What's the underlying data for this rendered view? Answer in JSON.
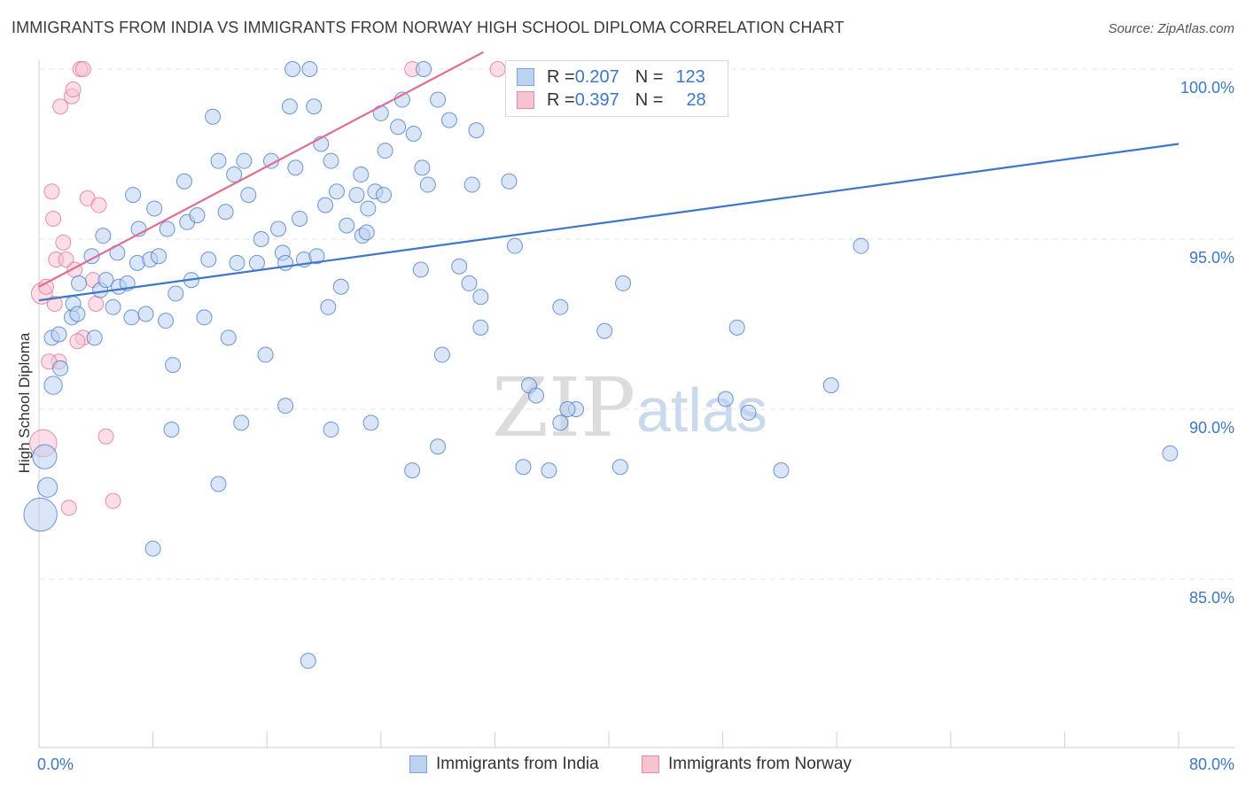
{
  "title": "IMMIGRANTS FROM INDIA VS IMMIGRANTS FROM NORWAY HIGH SCHOOL DIPLOMA CORRELATION CHART",
  "source": "Source: ZipAtlas.com",
  "watermark": {
    "zip": "ZIP",
    "atlas": "atlas"
  },
  "colors": {
    "india": "#3d77c6",
    "india_fill": "#bcd2f0",
    "norway": "#e06d95",
    "norway_fill": "#f8c3d1",
    "grid": "#e4e4e4",
    "tick_label": "#3d77c6"
  },
  "legend_top": {
    "india": {
      "r_label": "R = ",
      "r_value": "0.207",
      "n_label": "N = ",
      "n_value": "123"
    },
    "norway": {
      "r_label": "R = ",
      "r_value": "0.397",
      "n_label": "N = ",
      "n_value": "28"
    }
  },
  "legend_bottom": {
    "india": "Immigrants from India",
    "norway": "Immigrants from Norway"
  },
  "chart_data": {
    "type": "scatter",
    "title": "IMMIGRANTS FROM INDIA VS IMMIGRANTS FROM NORWAY HIGH SCHOOL DIPLOMA CORRELATION CHART",
    "xlabel": "",
    "ylabel": "High School Diploma",
    "xlim": [
      0,
      80
    ],
    "ylim": [
      80,
      100.5
    ],
    "x_tick_labels": [
      "0.0%",
      "80.0%"
    ],
    "y_ticks": [
      85,
      90,
      95,
      100
    ],
    "y_tick_labels": [
      "85.0%",
      "90.0%",
      "95.0%",
      "100.0%"
    ],
    "series": [
      {
        "name": "Immigrants from India",
        "r": 0.207,
        "n": 123,
        "trend": {
          "x": [
            0,
            80
          ],
          "y": [
            93.2,
            97.8
          ]
        },
        "points": [
          [
            0.1,
            86.9,
            2.2
          ],
          [
            0.4,
            88.6,
            1.6
          ],
          [
            0.6,
            87.7,
            1.3
          ],
          [
            0.9,
            92.1,
            1.0
          ],
          [
            1.0,
            90.7,
            1.2
          ],
          [
            1.4,
            92.2,
            1.0
          ],
          [
            1.5,
            91.2,
            1.0
          ],
          [
            2.3,
            92.7,
            1.0
          ],
          [
            2.4,
            93.1,
            1.0
          ],
          [
            2.7,
            92.8,
            1.0
          ],
          [
            2.8,
            93.7,
            1.0
          ],
          [
            3.7,
            94.5,
            1.0
          ],
          [
            3.9,
            92.1,
            1.0
          ],
          [
            4.3,
            93.5,
            1.0
          ],
          [
            4.5,
            95.1,
            1.0
          ],
          [
            4.7,
            93.8,
            1.0
          ],
          [
            5.2,
            93.0,
            1.0
          ],
          [
            5.5,
            94.6,
            1.0
          ],
          [
            5.6,
            93.6,
            1.0
          ],
          [
            6.2,
            93.7,
            1.0
          ],
          [
            6.5,
            92.7,
            1.0
          ],
          [
            6.9,
            94.3,
            1.0
          ],
          [
            6.6,
            96.3,
            1.0
          ],
          [
            7.0,
            95.3,
            1.0
          ],
          [
            7.5,
            92.8,
            1.0
          ],
          [
            7.8,
            94.4,
            1.0
          ],
          [
            8.1,
            95.9,
            1.0
          ],
          [
            8.4,
            94.5,
            1.0
          ],
          [
            8.9,
            92.6,
            1.0
          ],
          [
            9.0,
            95.3,
            1.0
          ],
          [
            9.4,
            91.3,
            1.0
          ],
          [
            9.6,
            93.4,
            1.0
          ],
          [
            10.2,
            96.7,
            1.0
          ],
          [
            10.4,
            95.5,
            1.0
          ],
          [
            10.7,
            93.8,
            1.0
          ],
          [
            11.1,
            95.7,
            1.0
          ],
          [
            11.6,
            92.7,
            1.0
          ],
          [
            11.9,
            94.4,
            1.0
          ],
          [
            12.2,
            98.6,
            1.0
          ],
          [
            12.6,
            97.3,
            1.0
          ],
          [
            13.1,
            95.8,
            1.0
          ],
          [
            13.3,
            92.1,
            1.0
          ],
          [
            13.7,
            96.9,
            1.0
          ],
          [
            13.9,
            94.3,
            1.0
          ],
          [
            14.4,
            97.3,
            1.0
          ],
          [
            14.7,
            96.3,
            1.0
          ],
          [
            15.3,
            94.3,
            1.0
          ],
          [
            15.6,
            95.0,
            1.0
          ],
          [
            15.9,
            91.6,
            1.0
          ],
          [
            16.3,
            97.3,
            1.0
          ],
          [
            16.8,
            95.3,
            1.0
          ],
          [
            17.1,
            94.6,
            1.0
          ],
          [
            17.3,
            94.3,
            1.0
          ],
          [
            17.6,
            98.9,
            1.0
          ],
          [
            17.8,
            100.0,
            1.0
          ],
          [
            18.0,
            97.1,
            1.0
          ],
          [
            18.3,
            95.6,
            1.0
          ],
          [
            18.6,
            94.4,
            1.0
          ],
          [
            19.0,
            100.0,
            1.0
          ],
          [
            19.3,
            98.9,
            1.0
          ],
          [
            19.5,
            94.5,
            1.0
          ],
          [
            20.1,
            96.0,
            1.0
          ],
          [
            20.3,
            93.0,
            1.0
          ],
          [
            20.5,
            97.3,
            1.0
          ],
          [
            20.9,
            96.4,
            1.0
          ],
          [
            21.6,
            95.4,
            1.0
          ],
          [
            22.3,
            96.3,
            1.0
          ],
          [
            22.7,
            95.1,
            1.0
          ],
          [
            23.1,
            95.9,
            1.0
          ],
          [
            23.6,
            96.4,
            1.0
          ],
          [
            24.0,
            98.7,
            1.0
          ],
          [
            24.3,
            97.6,
            1.0
          ],
          [
            25.2,
            98.3,
            1.0
          ],
          [
            26.3,
            98.1,
            1.0
          ],
          [
            26.9,
            97.1,
            1.0
          ],
          [
            27.3,
            96.6,
            1.0
          ],
          [
            28.0,
            99.1,
            1.0
          ],
          [
            28.8,
            98.5,
            1.0
          ],
          [
            30.7,
            98.2,
            1.0
          ],
          [
            30.4,
            96.6,
            1.0
          ],
          [
            31.0,
            93.3,
            1.0
          ],
          [
            33.0,
            96.7,
            1.0
          ],
          [
            33.4,
            94.8,
            1.0
          ],
          [
            29.5,
            94.2,
            1.0
          ],
          [
            30.2,
            93.7,
            1.0
          ],
          [
            26.8,
            94.1,
            1.0
          ],
          [
            31.0,
            92.4,
            1.0
          ],
          [
            34.4,
            90.7,
            1.0
          ],
          [
            36.6,
            89.6,
            1.0
          ],
          [
            37.7,
            90.0,
            1.0
          ],
          [
            35.8,
            88.2,
            1.0
          ],
          [
            34.0,
            88.3,
            1.0
          ],
          [
            39.7,
            92.3,
            1.0
          ],
          [
            41.0,
            93.7,
            1.0
          ],
          [
            37.1,
            90.0,
            1.0
          ],
          [
            34.9,
            90.4,
            1.0
          ],
          [
            36.6,
            93.0,
            1.0
          ],
          [
            40.8,
            88.3,
            1.0
          ],
          [
            79.4,
            88.7,
            1.0
          ],
          [
            57.7,
            94.8,
            1.0
          ],
          [
            49.0,
            92.4,
            1.0
          ],
          [
            48.2,
            90.3,
            1.0
          ],
          [
            49.8,
            89.9,
            1.0
          ],
          [
            52.1,
            88.2,
            1.0
          ],
          [
            55.6,
            90.7,
            1.0
          ],
          [
            28.3,
            91.6,
            1.0
          ],
          [
            28.0,
            88.9,
            1.0
          ],
          [
            26.2,
            88.2,
            1.0
          ],
          [
            23.3,
            89.6,
            1.0
          ],
          [
            20.5,
            89.4,
            1.0
          ],
          [
            17.3,
            90.1,
            1.0
          ],
          [
            14.2,
            89.6,
            1.0
          ],
          [
            12.6,
            87.8,
            1.0
          ],
          [
            9.3,
            89.4,
            1.0
          ],
          [
            8.0,
            85.9,
            1.0
          ],
          [
            18.9,
            82.6,
            1.0
          ],
          [
            27.0,
            100.0,
            1.0
          ],
          [
            25.5,
            99.1,
            1.0
          ],
          [
            24.2,
            96.3,
            1.0
          ],
          [
            22.6,
            96.9,
            1.0
          ],
          [
            19.8,
            97.8,
            1.0
          ],
          [
            21.2,
            93.6,
            1.0
          ],
          [
            23.0,
            95.2,
            1.0
          ]
        ]
      },
      {
        "name": "Immigrants from Norway",
        "r": 0.397,
        "n": 28,
        "trend": {
          "x": [
            0,
            31.2
          ],
          "y": [
            93.6,
            100.5
          ]
        },
        "points": [
          [
            0.2,
            93.4,
            1.4
          ],
          [
            0.3,
            89.0,
            1.8
          ],
          [
            0.5,
            93.6,
            1.0
          ],
          [
            0.9,
            96.4,
            1.0
          ],
          [
            1.0,
            95.6,
            1.0
          ],
          [
            1.2,
            94.4,
            1.0
          ],
          [
            1.4,
            91.4,
            1.0
          ],
          [
            1.5,
            98.9,
            1.0
          ],
          [
            1.7,
            94.9,
            1.0
          ],
          [
            1.9,
            94.4,
            1.0
          ],
          [
            2.1,
            87.1,
            1.0
          ],
          [
            2.3,
            99.2,
            1.0
          ],
          [
            2.4,
            99.4,
            1.0
          ],
          [
            2.5,
            94.1,
            1.0
          ],
          [
            2.9,
            100.0,
            1.0
          ],
          [
            3.1,
            100.0,
            1.0
          ],
          [
            3.1,
            92.1,
            1.0
          ],
          [
            3.4,
            96.2,
            1.0
          ],
          [
            3.8,
            93.8,
            1.0
          ],
          [
            4.0,
            93.1,
            1.0
          ],
          [
            4.2,
            96.0,
            1.0
          ],
          [
            4.7,
            89.2,
            1.0
          ],
          [
            5.2,
            87.3,
            1.0
          ],
          [
            1.1,
            93.1,
            1.0
          ],
          [
            0.7,
            91.4,
            1.0
          ],
          [
            2.7,
            92.0,
            1.0
          ],
          [
            26.2,
            100.0,
            1.0
          ],
          [
            32.2,
            100.0,
            1.0
          ]
        ]
      }
    ]
  }
}
